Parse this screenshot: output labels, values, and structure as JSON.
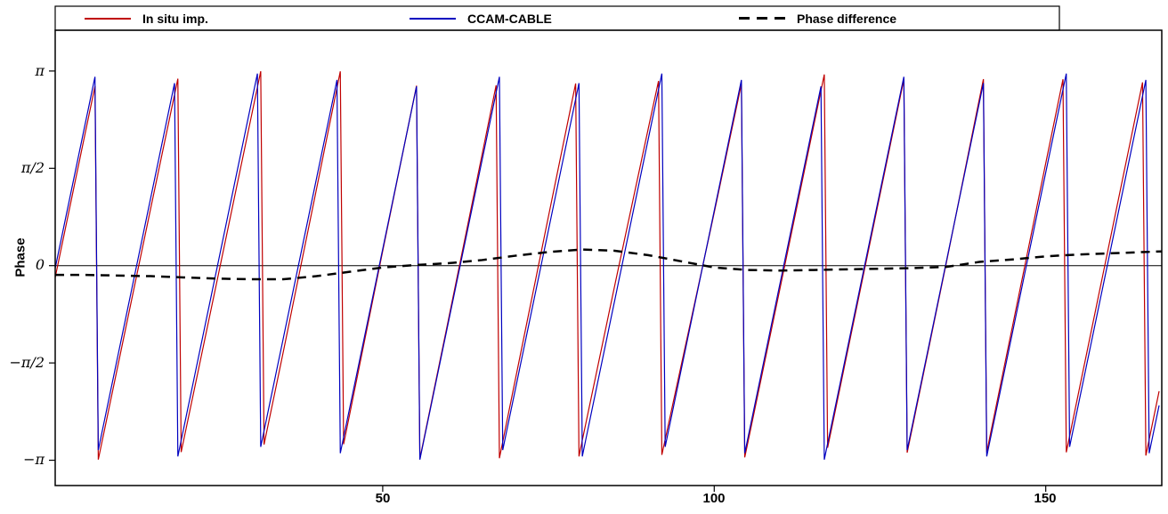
{
  "chart": {
    "ylabel": "Phase",
    "legend": {
      "entries": [
        {
          "label": "In situ imp.",
          "color": "#c00000",
          "style": "solid"
        },
        {
          "label": "CCAM-CABLE",
          "color": "#0000c0",
          "style": "solid"
        },
        {
          "label": "Phase difference",
          "color": "#000000",
          "style": "dashed"
        }
      ]
    }
  },
  "chart_data": {
    "type": "line",
    "ylabel": "Phase",
    "xlim": [
      0.6,
      167.5
    ],
    "ylim": [
      -3.55,
      3.8
    ],
    "x_tick_labels": [
      "50",
      "100",
      "150"
    ],
    "x_tick_values": [
      50,
      100,
      150
    ],
    "y_tick_labels": [
      "π",
      "π/2",
      "0",
      "−π/2",
      "−π"
    ],
    "y_tick_values": [
      3.14159,
      1.5708,
      0,
      -1.5708,
      -3.14159
    ],
    "zero_line": true,
    "grid": false,
    "legend_position": "top",
    "sample_step": 0.5,
    "series": [
      {
        "name": "In situ imp.",
        "color": "#c00000",
        "line_style": "solid",
        "line_width": 1.2,
        "generator": {
          "type": "wrapped-sawtooth",
          "period": 12.2,
          "peak_x": 6.78,
          "range": [
            -3.14159,
            3.14159
          ],
          "phase_offset_from": "Phase difference"
        }
      },
      {
        "name": "CCAM-CABLE",
        "color": "#0000c0",
        "line_style": "solid",
        "line_width": 1.2,
        "generator": {
          "type": "wrapped-sawtooth",
          "period": 12.2,
          "peak_x": 6.78,
          "range": [
            -3.14159,
            3.14159
          ]
        }
      },
      {
        "name": "Phase difference",
        "color": "#000000",
        "line_style": "dashed",
        "line_width": 2.5,
        "points": {
          "x": [
            0.6,
            5,
            10,
            15,
            20,
            25,
            30,
            35,
            40,
            45,
            50,
            55,
            60,
            65,
            70,
            75,
            80,
            85,
            90,
            95,
            100,
            105,
            110,
            115,
            120,
            125,
            130,
            135,
            140,
            145,
            150,
            155,
            160,
            165,
            167.5
          ],
          "y": [
            -0.15,
            -0.15,
            -0.16,
            -0.17,
            -0.19,
            -0.21,
            -0.22,
            -0.22,
            -0.17,
            -0.1,
            -0.03,
            0.01,
            0.04,
            0.09,
            0.16,
            0.22,
            0.26,
            0.24,
            0.17,
            0.07,
            -0.03,
            -0.07,
            -0.08,
            -0.07,
            -0.06,
            -0.05,
            -0.04,
            -0.02,
            0.06,
            0.1,
            0.15,
            0.18,
            0.2,
            0.22,
            0.23
          ]
        }
      }
    ]
  }
}
